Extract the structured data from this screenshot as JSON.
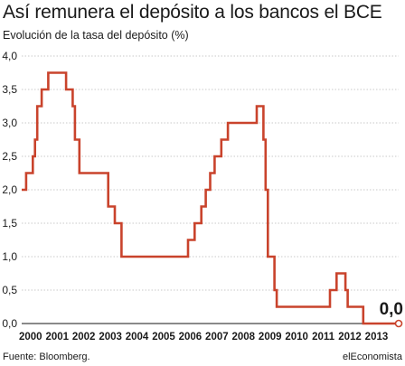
{
  "chart_data": {
    "type": "line",
    "title": "Así remunera el depósito a los bancos el BCE",
    "subtitle": "Evolución de la tasa del depósito (%)",
    "xlabel": "",
    "ylabel": "",
    "x_ticks": [
      "2000",
      "2001",
      "2002",
      "2003",
      "2004",
      "2005",
      "2006",
      "2007",
      "2008",
      "2009",
      "2010",
      "2011",
      "2012",
      "2013"
    ],
    "y_ticks": [
      "0,0",
      "0,5",
      "1,0",
      "1,5",
      "2,0",
      "2,5",
      "3,0",
      "3,5",
      "4,0"
    ],
    "ylim": [
      0,
      4
    ],
    "xlim": [
      "1999-09",
      "2013-11"
    ],
    "grid": "horizontal",
    "line_color": "#c9432c",
    "end_label": "0,0",
    "series": [
      {
        "points": [
          [
            "1999-09",
            2.0
          ],
          [
            "1999-11",
            2.25
          ],
          [
            "2000-02",
            2.5
          ],
          [
            "2000-03",
            2.75
          ],
          [
            "2000-04",
            3.25
          ],
          [
            "2000-06",
            3.5
          ],
          [
            "2000-09",
            3.75
          ],
          [
            "2001-05",
            3.5
          ],
          [
            "2001-08",
            3.25
          ],
          [
            "2001-09",
            2.75
          ],
          [
            "2001-11",
            2.25
          ],
          [
            "2002-12",
            1.75
          ],
          [
            "2003-03",
            1.5
          ],
          [
            "2003-06",
            1.0
          ],
          [
            "2005-12",
            1.25
          ],
          [
            "2006-03",
            1.5
          ],
          [
            "2006-06",
            1.75
          ],
          [
            "2006-08",
            2.0
          ],
          [
            "2006-10",
            2.25
          ],
          [
            "2006-12",
            2.5
          ],
          [
            "2007-03",
            2.75
          ],
          [
            "2007-06",
            3.0
          ],
          [
            "2008-07",
            3.25
          ],
          [
            "2008-10",
            2.75
          ],
          [
            "2008-11",
            2.0
          ],
          [
            "2008-12",
            1.0
          ],
          [
            "2009-01",
            1.0
          ],
          [
            "2009-03",
            0.5
          ],
          [
            "2009-04",
            0.25
          ],
          [
            "2011-04",
            0.5
          ],
          [
            "2011-07",
            0.75
          ],
          [
            "2011-11",
            0.5
          ],
          [
            "2011-12",
            0.25
          ],
          [
            "2012-07",
            0.0
          ],
          [
            "2013-11",
            0.0
          ]
        ]
      }
    ]
  },
  "footer": {
    "source": "Fuente: Bloomberg.",
    "brand": "elEconomista"
  }
}
